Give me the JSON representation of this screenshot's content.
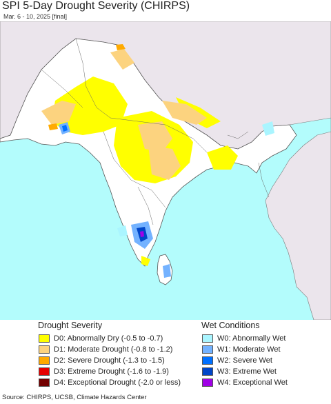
{
  "title": "SPI 5-Day Drought Severity (CHIRPS)",
  "subtitle": "Mar. 6 - 10, 2025 [final]",
  "legend": {
    "drought_heading": "Drought Severity",
    "wet_heading": "Wet Conditions",
    "drought_items": [
      {
        "label": "D0: Abnormally Dry (-0.5 to -0.7)",
        "color": "#ffff00"
      },
      {
        "label": "D1: Moderate Drought (-0.8 to -1.2)",
        "color": "#fcd37f"
      },
      {
        "label": "D2: Severe Drought (-1.3 to -1.5)",
        "color": "#ffaa00"
      },
      {
        "label": "D3: Extreme Drought (-1.6 to -1.9)",
        "color": "#e60000"
      },
      {
        "label": "D4: Exceptional Drought (-2.0 or less)",
        "color": "#730000"
      }
    ],
    "wet_items": [
      {
        "label": "W0: Abnormally Wet",
        "color": "#aaf5ff"
      },
      {
        "label": "W1: Moderate Wet",
        "color": "#73b2ff"
      },
      {
        "label": "W2: Severe Wet",
        "color": "#0070ff"
      },
      {
        "label": "W3: Extreme Wet",
        "color": "#0046c8"
      },
      {
        "label": "W4: Exceptional Wet",
        "color": "#a000e6"
      }
    ]
  },
  "map_colors": {
    "ocean": "#b3fcfc",
    "land_outside": "#ebe5ec",
    "land_region": "#ffffff",
    "border": "#555555"
  },
  "source": "Source: CHIRPS, UCSB, Climate Hazards Center"
}
